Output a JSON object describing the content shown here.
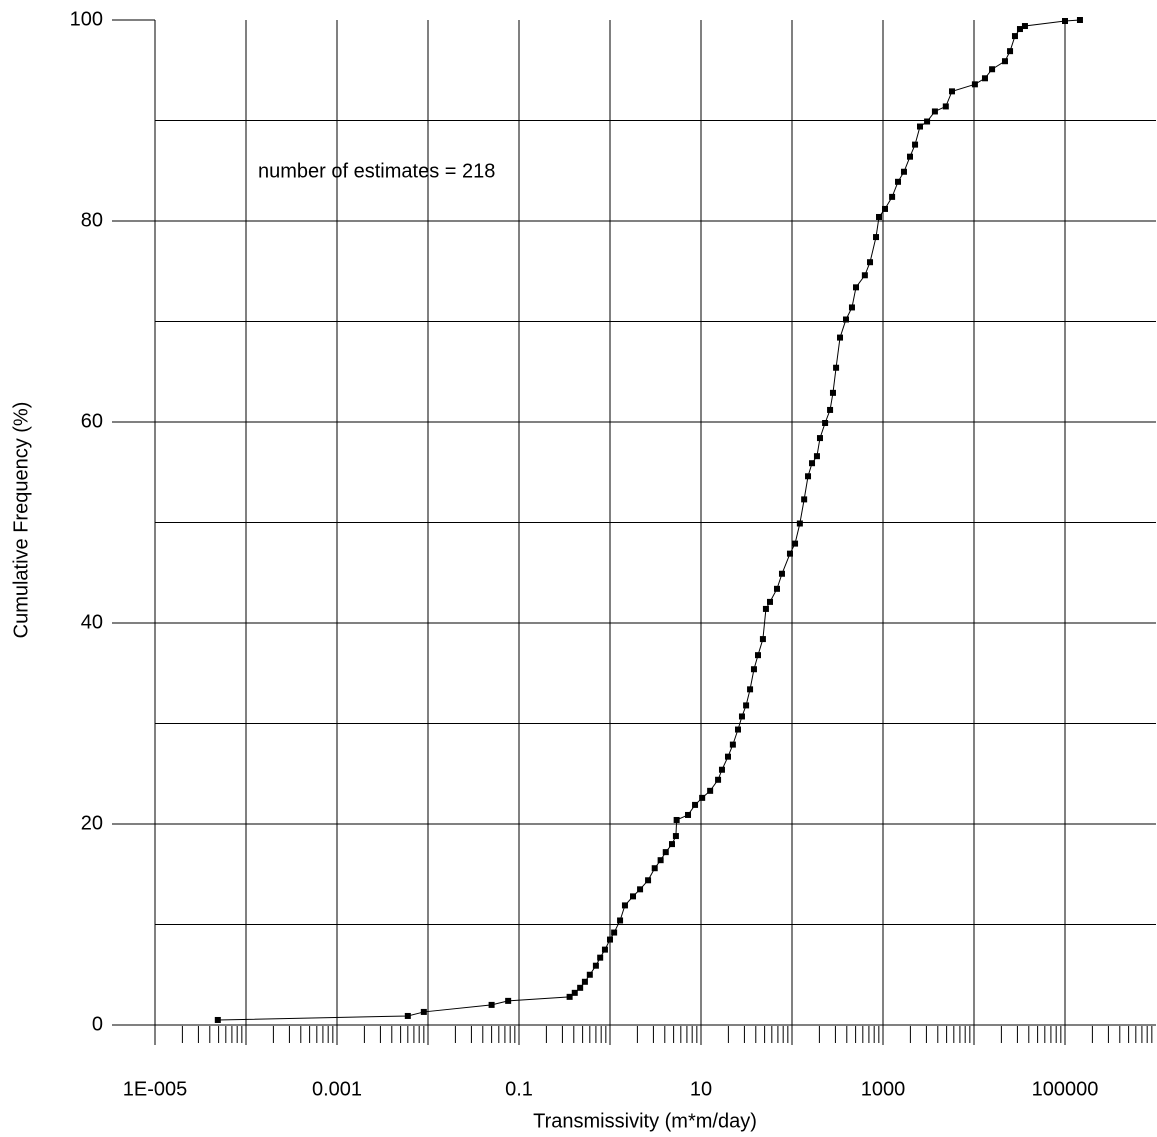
{
  "chart_data": {
    "type": "line",
    "xlabel": "Transmissivity (m*m/day)",
    "ylabel": "Cumulative Frequency (%)",
    "annotation": "number of estimates = 218",
    "xscale": "log",
    "grid": true,
    "color": "#000000",
    "xlim": [
      1e-05,
      1000000
    ],
    "xticks": [
      {
        "value": 1e-05,
        "label": "1E-005"
      },
      0.001,
      0.1,
      10,
      1000,
      100000
    ],
    "ylim": [
      0,
      100
    ],
    "yticks": [
      0,
      20,
      40,
      60,
      80,
      100
    ],
    "x": [
      4.9e-05,
      0.006,
      0.009,
      0.05,
      0.076,
      0.36,
      0.41,
      0.47,
      0.53,
      0.6,
      0.7,
      0.78,
      0.88,
      1.0,
      1.11,
      1.29,
      1.46,
      1.79,
      2.14,
      2.62,
      3.1,
      3.6,
      4.1,
      4.8,
      5.3,
      5.4,
      7.2,
      8.6,
      10.3,
      12.6,
      15.4,
      17,
      19.8,
      22.4,
      25.5,
      28.2,
      31.3,
      34.6,
      38.2,
      42.3,
      47.9,
      51.7,
      57.3,
      68.4,
      77.6,
      95,
      108,
      122,
      136,
      150,
      166,
      188,
      203,
      231,
      262,
      282,
      305,
      337,
      392,
      456,
      505,
      632,
      720,
      838,
      904,
      1052,
      1259,
      1462,
      1700,
      1980,
      2250,
      2550,
      3050,
      3720,
      4900,
      5730,
      10230,
      13200,
      15800,
      21900,
      24900,
      28200,
      32000,
      36300,
      100000,
      146000
    ],
    "values": [
      0.5,
      0.9,
      1.3,
      2.0,
      2.4,
      2.8,
      3.2,
      3.7,
      4.3,
      5.0,
      5.9,
      6.7,
      7.5,
      8.5,
      9.2,
      10.4,
      11.9,
      12.8,
      13.5,
      14.4,
      15.6,
      16.4,
      17.2,
      18.0,
      18.8,
      20.4,
      20.9,
      21.9,
      22.6,
      23.3,
      24.4,
      25.4,
      26.7,
      27.9,
      29.4,
      30.7,
      31.8,
      33.4,
      35.4,
      36.8,
      38.4,
      41.4,
      42.1,
      43.4,
      44.9,
      46.9,
      47.9,
      49.9,
      52.3,
      54.6,
      55.9,
      56.6,
      58.4,
      59.9,
      61.2,
      62.9,
      65.4,
      68.4,
      70.2,
      71.4,
      73.4,
      74.6,
      75.9,
      78.4,
      80.4,
      81.2,
      82.4,
      83.9,
      84.9,
      86.4,
      87.6,
      89.4,
      89.9,
      90.9,
      91.4,
      92.9,
      93.6,
      94.2,
      95.1,
      95.9,
      96.9,
      98.4,
      99.1,
      99.4,
      99.9,
      100
    ]
  }
}
